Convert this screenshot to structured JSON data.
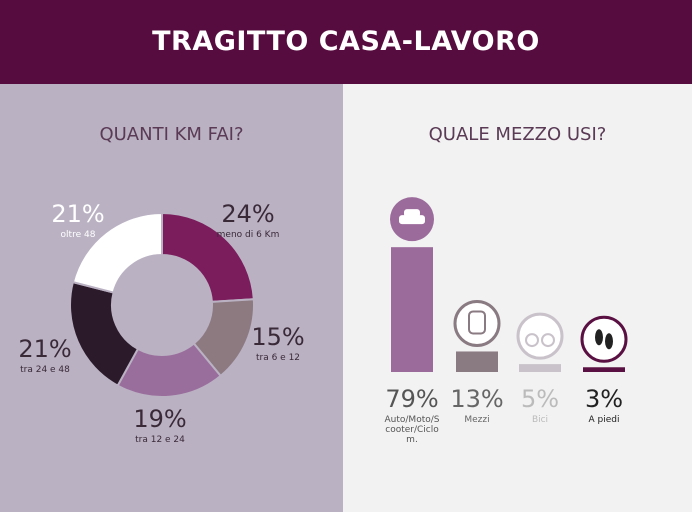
{
  "header": {
    "title": "TRAGITTO CASA-LAVORO"
  },
  "chart_data": [
    {
      "type": "pie",
      "title": "QUANTI KM FAI?",
      "categories": [
        "meno di 6 Km",
        "tra 6 e 12",
        "tra 12 e 24",
        "tra 24 e 48",
        "oltre 48"
      ],
      "values": [
        24,
        15,
        19,
        21,
        21
      ],
      "value_labels": [
        "24%",
        "15%",
        "19%",
        "21%",
        "21%"
      ],
      "colors": [
        "#7b1c5c",
        "#8c7a80",
        "#9a6e9c",
        "#2b1a29",
        "#ffffff"
      ]
    },
    {
      "type": "bar",
      "title": "QUALE MEZZO USI?",
      "categories": [
        "Auto/Moto/Scooter/Ciclom.",
        "Mezzi",
        "Bici",
        "A piedi"
      ],
      "values": [
        79,
        13,
        5,
        3
      ],
      "value_labels": [
        "79%",
        "13%",
        "5%",
        "3%"
      ],
      "colors": [
        "#9b6b9b",
        "#8a7a82",
        "#c9c2ca",
        "#5a1042"
      ]
    }
  ]
}
